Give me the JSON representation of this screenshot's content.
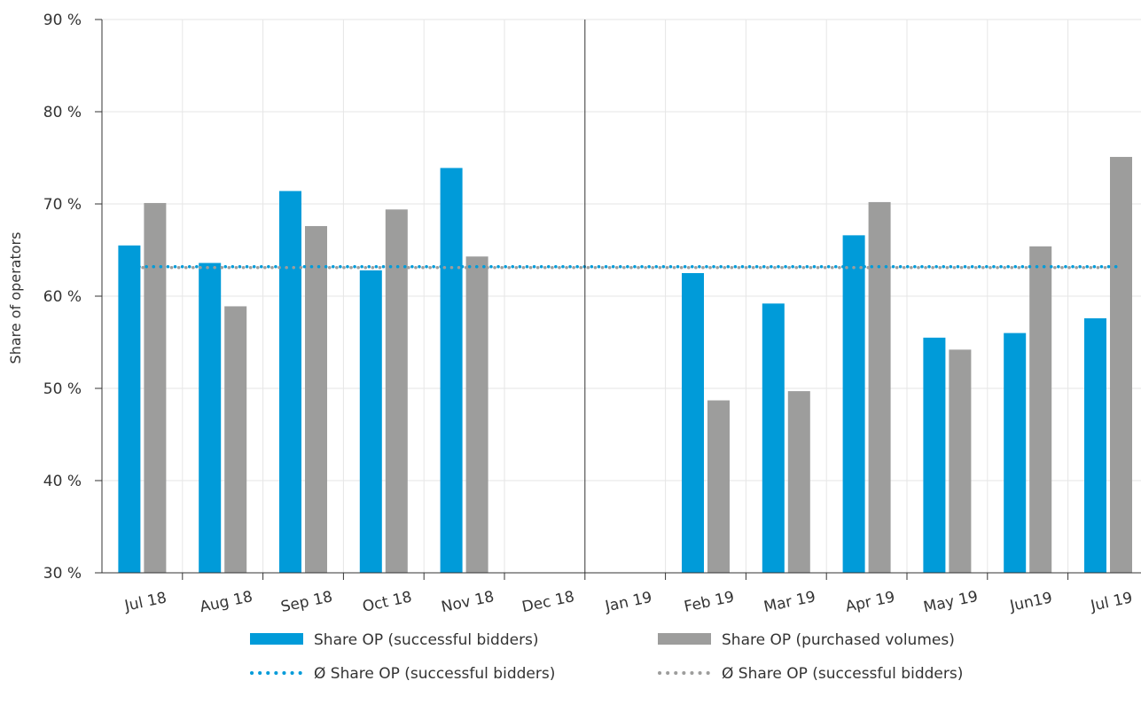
{
  "chart_data": {
    "type": "bar",
    "title": "",
    "xlabel": "",
    "ylabel": "Share of operators",
    "ylim": [
      30,
      90
    ],
    "y_ticks": [
      "30 %",
      "40 %",
      "50 %",
      "60 %",
      "70 %",
      "80 %",
      "90 %"
    ],
    "y_tick_values": [
      30,
      40,
      50,
      60,
      70,
      80,
      90
    ],
    "grid": true,
    "categories": [
      "Jul 18",
      "Aug 18",
      "Sep 18",
      "Oct 18",
      "Nov 18",
      "Dec 18",
      "Jan 19",
      "Feb 19",
      "Mar 19",
      "Apr 19",
      "May 19",
      "Jun19",
      "Jul 19"
    ],
    "series": [
      {
        "name": "Share OP (successful bidders)",
        "color": "#009bd9",
        "values": [
          65.5,
          63.6,
          71.4,
          62.8,
          73.9,
          null,
          null,
          62.5,
          59.2,
          66.6,
          55.5,
          56.0,
          57.6
        ]
      },
      {
        "name": "Share OP (purchased volumes)",
        "color": "#9d9d9c",
        "values": [
          70.1,
          58.9,
          67.6,
          69.4,
          64.3,
          null,
          null,
          48.7,
          49.7,
          70.2,
          54.2,
          65.4,
          75.1
        ]
      }
    ],
    "average_lines": [
      {
        "name": "Ø Share OP (successful bidders)",
        "color": "#009bd9",
        "value": 63.2
      },
      {
        "name": "Ø Share OP (successful bidders)",
        "color": "#9d9d9c",
        "value": 63.1
      }
    ],
    "separator_after": "Dec 18",
    "legend_position": "bottom"
  }
}
